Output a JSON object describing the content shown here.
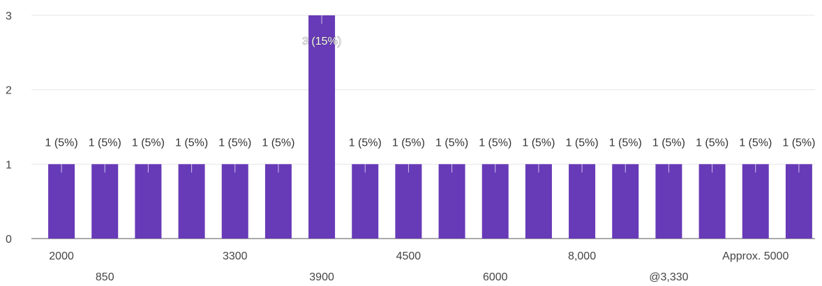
{
  "chart_data": {
    "type": "bar",
    "title": "",
    "xlabel": "",
    "ylabel": "",
    "ylim": [
      0,
      3
    ],
    "yticks": [
      0,
      1,
      2,
      3
    ],
    "grid": true,
    "bar_color": "#673ab7",
    "categories": [
      "2000",
      "850",
      "",
      "",
      "3300",
      "",
      "3900",
      "",
      "4500",
      "",
      "6000",
      "",
      "8,000",
      "",
      "@3,330",
      "",
      "Approx. 5000",
      ""
    ],
    "values": [
      1,
      1,
      1,
      1,
      1,
      1,
      3,
      1,
      1,
      1,
      1,
      1,
      1,
      1,
      1,
      1,
      1,
      1
    ],
    "data_labels": [
      "1 (5%)",
      "1 (5%)",
      "1 (5%)",
      "1 (5%)",
      "1 (5%)",
      "1 (5%)",
      "3 (15%)",
      "1 (5%)",
      "1 (5%)",
      "1 (5%)",
      "1 (5%)",
      "1 (5%)",
      "1 (5%)",
      "1 (5%)",
      "1 (5%)",
      "1 (5%)",
      "1 (5%)",
      "1 (5%)"
    ]
  }
}
